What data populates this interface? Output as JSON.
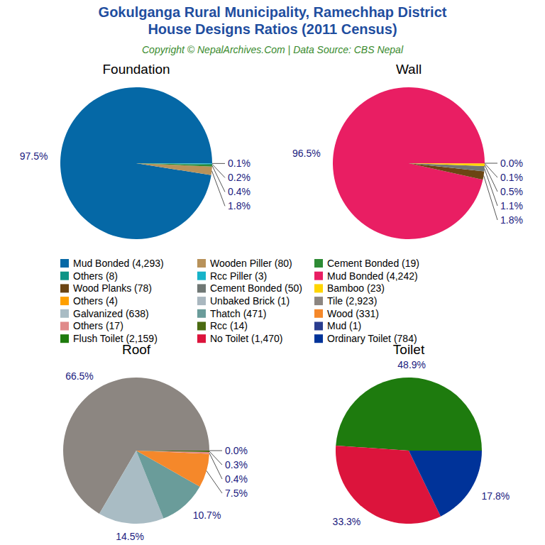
{
  "title": [
    "Gokulganga Rural Municipality, Ramechhap District",
    "House Designs Ratios (2011 Census)"
  ],
  "subtitle": "Copyright © NepalArchives.Com | Data Source: CBS Nepal",
  "chart_data": [
    {
      "type": "pie",
      "title": "Foundation",
      "categories": [
        "Mud Bonded (4,293)",
        "Wooden Piller (80)",
        "Cement Bonded (19)",
        "Others (8)",
        "Rcc Piller (3)"
      ],
      "values": [
        97.5,
        1.8,
        0.4,
        0.2,
        0.1
      ],
      "value_labels": [
        "97.5%",
        "1.8%",
        "0.4%",
        "0.2%",
        "0.1%"
      ],
      "colors": [
        "#0568a6",
        "#b8925a",
        "#2e8b35",
        "#0e9486",
        "#17b3c9"
      ],
      "data_labels": true
    },
    {
      "type": "pie",
      "title": "Wall",
      "categories": [
        "Mud Bonded (4,242)",
        "Wood Planks (78)",
        "Cement Bonded (50)",
        "Bamboo (23)",
        "Others (4)",
        "Unbaked Brick (1)"
      ],
      "values": [
        96.5,
        1.8,
        1.1,
        0.5,
        0.1,
        0.0
      ],
      "value_labels": [
        "96.5%",
        "1.8%",
        "1.1%",
        "0.5%",
        "0.1%",
        "0.0%"
      ],
      "colors": [
        "#e91e63",
        "#6b4513",
        "#6f7774",
        "#ffd500",
        "#ffa000",
        "#a9b7bf"
      ],
      "data_labels": true
    },
    {
      "type": "pie",
      "title": "Roof",
      "categories": [
        "Tile (2,923)",
        "Galvanized (638)",
        "Thatch (471)",
        "Wood (331)",
        "Others (17)",
        "Rcc (14)",
        "Mud (1)"
      ],
      "values": [
        66.5,
        14.5,
        10.7,
        7.5,
        0.4,
        0.3,
        0.0
      ],
      "value_labels": [
        "66.5%",
        "14.5%",
        "10.7%",
        "7.5%",
        "0.4%",
        "0.3%",
        "0.0%"
      ],
      "colors": [
        "#8c8681",
        "#a9bcc4",
        "#6a9c9a",
        "#f5882a",
        "#e08a8a",
        "#4b6b12",
        "#2a3d8f"
      ],
      "data_labels": true
    },
    {
      "type": "pie",
      "title": "Toilet",
      "categories": [
        "Flush Toilet (2,159)",
        "No Toilet (1,470)",
        "Ordinary Toilet (784)"
      ],
      "values": [
        48.9,
        33.3,
        17.8
      ],
      "value_labels": [
        "48.9%",
        "33.3%",
        "17.8%"
      ],
      "colors": [
        "#1e7b0e",
        "#dc143c",
        "#003399"
      ],
      "data_labels": true
    }
  ]
}
